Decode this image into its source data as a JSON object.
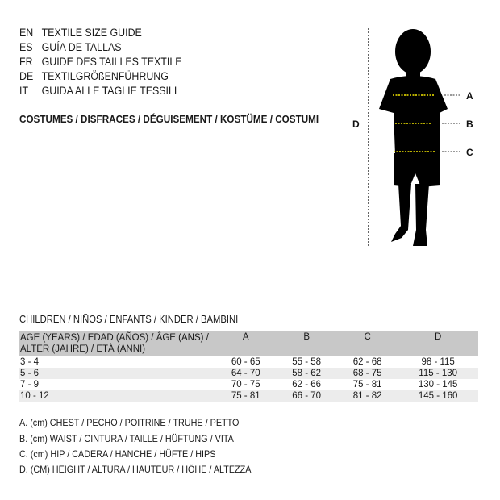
{
  "guide_titles": [
    {
      "code": "EN",
      "text": "TEXTILE SIZE GUIDE"
    },
    {
      "code": "ES",
      "text": "GUÍA DE TALLAS"
    },
    {
      "code": "FR",
      "text": "GUIDE DES TAILLES TEXTILE"
    },
    {
      "code": "DE",
      "text": "TEXTILGRÖßENFÜHRUNG"
    },
    {
      "code": "IT",
      "text": "GUIDA ALLE TAGLIE TESSILI"
    }
  ],
  "category": "COSTUMES / DISFRACES / DÉGUISEMENT / KOSTÜME / COSTUMI",
  "figure": {
    "labels": {
      "a": "A",
      "b": "B",
      "c": "C",
      "d": "D"
    },
    "accent": "#f2e600"
  },
  "section": "CHILDREN / NIÑOS / ENFANTS / KINDER / BAMBINI",
  "table": {
    "header_line1": "AGE (YEARS) / EDAD (AÑOS) / ÂGE (ANS) /",
    "header_line2": "ALTER (JAHRE) / ETÀ (ANNI)",
    "columns": [
      "A",
      "B",
      "C",
      "D"
    ],
    "rows": [
      [
        "3 - 4",
        "60 - 65",
        "55 - 58",
        "62 - 68",
        "98 - 115"
      ],
      [
        "5 - 6",
        "64 - 70",
        "58 - 62",
        "68 - 75",
        "115 - 130"
      ],
      [
        "7 - 9",
        "70 - 75",
        "62 - 66",
        "75 - 81",
        "130 - 145"
      ],
      [
        "10 - 12",
        "75 - 81",
        "66 - 70",
        "81 - 82",
        "145 - 160"
      ]
    ]
  },
  "legend": [
    "A. (cm) CHEST / PECHO / POITRINE / TRUHE / PETTO",
    "B. (cm) WAIST / CINTURA / TAILLE / HÜFTUNG / VITA",
    "C. (cm) HIP / CADERA / HANCHE / HÜFTE / HIPS",
    "D. (CM) HEIGHT / ALTURA / HAUTEUR / HÖHE / ALTEZZA"
  ]
}
